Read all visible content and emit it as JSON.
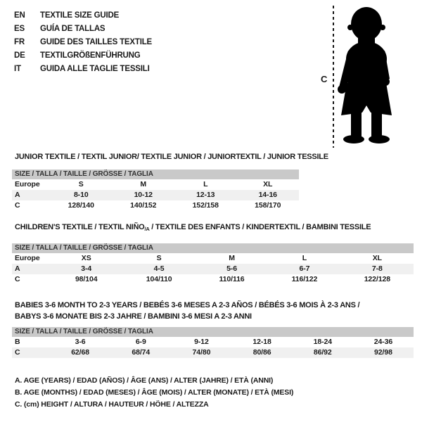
{
  "header": {
    "languages": [
      {
        "code": "EN",
        "title": "TEXTILE SIZE GUIDE"
      },
      {
        "code": "ES",
        "title": "GUÍA DE TALLAS"
      },
      {
        "code": "FR",
        "title": "GUIDE DES TAILLES TEXTILE"
      },
      {
        "code": "DE",
        "title": "TEXTILGRÖßENFÜHRUNG"
      },
      {
        "code": "IT",
        "title": "GUIDA ALLE TAGLIE TESSILI"
      }
    ]
  },
  "figure": {
    "icon": "baby-silhouette",
    "height_label": "C"
  },
  "colors": {
    "text": "#1a1a1a",
    "header_bar": "#c9c9c9",
    "shaded_row": "#f0f0f0",
    "silhouette": "#000000"
  },
  "tables": [
    {
      "title": "JUNIOR TEXTILE / TEXTIL JUNIOR/ TEXTILE JUNIOR / JUNIORTEXTIL / JUNIOR TESSILE",
      "size_header": "SIZE / TALLA / TAILLE / GRÖSSE / TAGLIA",
      "rows": [
        {
          "label": "Europe",
          "cells": [
            "S",
            "M",
            "L",
            "XL"
          ],
          "shaded": false
        },
        {
          "label": "A",
          "cells": [
            "8-10",
            "10-12",
            "12-13",
            "14-16"
          ],
          "shaded": true
        },
        {
          "label": "C",
          "cells": [
            "128/140",
            "140/152",
            "152/158",
            "158/170"
          ],
          "shaded": false
        }
      ]
    },
    {
      "title_pre": "CHILDREN'S TEXTILE / TEXTIL NIÑO",
      "title_sub": "/A",
      "title_post": " / TEXTILE DES ENFANTS / KINDERTEXTIL / BAMBINI TESSILE",
      "size_header": "SIZE / TALLA / TAILLE / GRÖSSE / TAGLIA",
      "rows": [
        {
          "label": "Europe",
          "cells": [
            "XS",
            "S",
            "M",
            "L",
            "XL"
          ],
          "shaded": false
        },
        {
          "label": "A",
          "cells": [
            "3-4",
            "4-5",
            "5-6",
            "6-7",
            "7-8"
          ],
          "shaded": true
        },
        {
          "label": "C",
          "cells": [
            "98/104",
            "104/110",
            "110/116",
            "116/122",
            "122/128"
          ],
          "shaded": false
        }
      ]
    },
    {
      "title_line1": "BABIES 3-6 MONTH TO 2-3 YEARS / BEBÉS 3-6 MESES A 2-3 AÑOS / BÉBÉS 3-6 MOIS À 2-3 ANS /",
      "title_line2": "BABYS 3-6 MONATE BIS 2-3 JAHRE / BAMBINI 3-6 MESI A 2-3 ANNI",
      "size_header": "SIZE / TALLA / TAILLE / GRÖSSE / TAGLIA",
      "rows": [
        {
          "label": "B",
          "cells": [
            "3-6",
            "6-9",
            "9-12",
            "12-18",
            "18-24",
            "24-36"
          ],
          "shaded": false
        },
        {
          "label": "C",
          "cells": [
            "62/68",
            "68/74",
            "74/80",
            "80/86",
            "86/92",
            "92/98"
          ],
          "shaded": true
        }
      ]
    }
  ],
  "footnotes": [
    "A. AGE (YEARS) / EDAD (AÑOS) / ÂGE (ANS) / ALTER (JAHRE) / ETÀ (ANNI)",
    "B. AGE (MONTHS) / EDAD (MESES) / ÂGE (MOIS) / ALTER (MONATE) / ETÀ (MESI)",
    "C. (cm) HEIGHT / ALTURA / HAUTEUR / HÖHE / ALTEZZA"
  ]
}
